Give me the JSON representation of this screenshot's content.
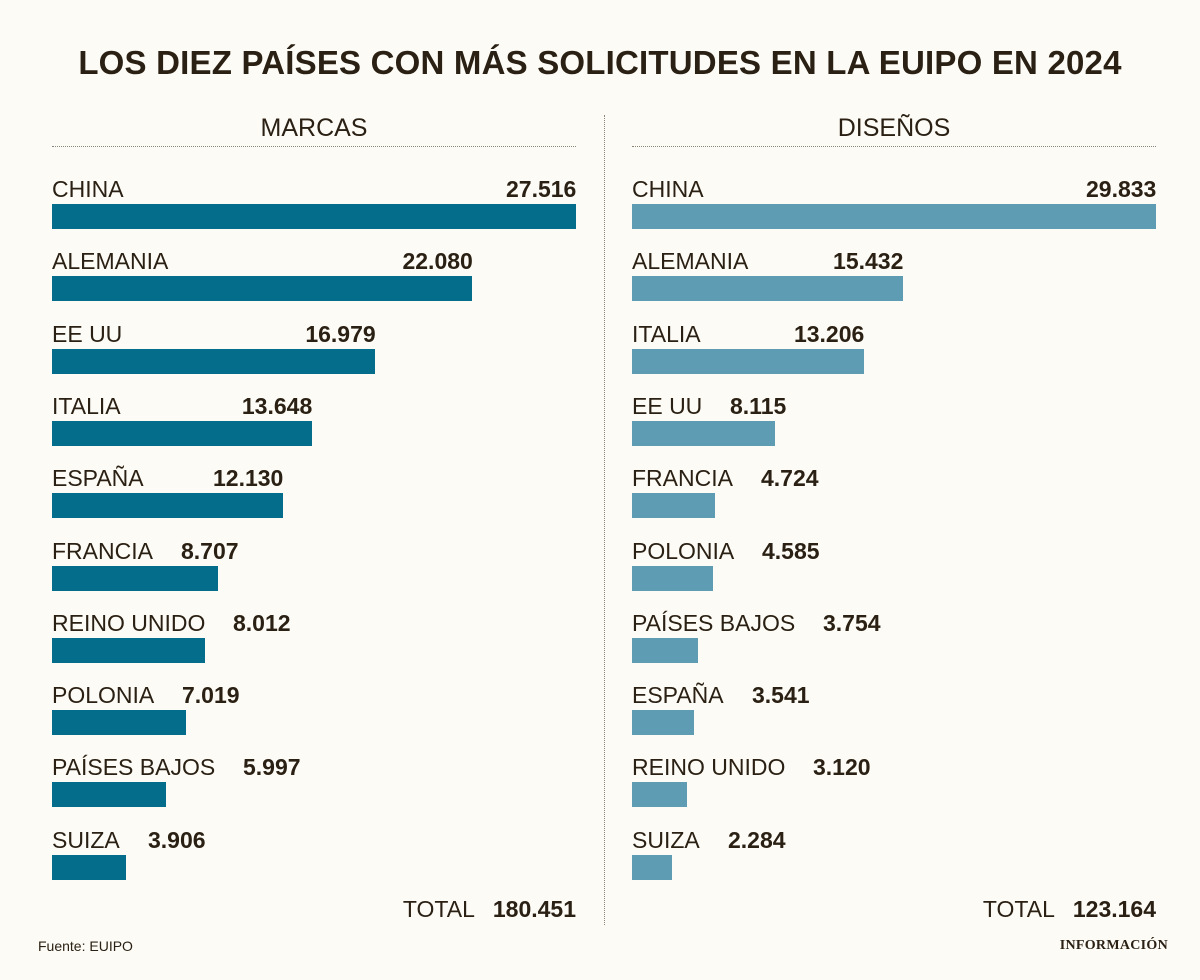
{
  "title": "LOS DIEZ PAÍSES CON MÁS SOLICITUDES EN LA EUIPO EN 2024",
  "colors": {
    "marcas_bar": "#046d8b",
    "disenos_bar": "#5e9cb3",
    "text": "#2a2013"
  },
  "chart_data": [
    {
      "type": "bar",
      "orientation": "horizontal",
      "title": "MARCAS",
      "categories": [
        "CHINA",
        "ALEMANIA",
        "EE UU",
        "ITALIA",
        "ESPAÑA",
        "FRANCIA",
        "REINO UNIDO",
        "POLONIA",
        "PAÍSES BAJOS",
        "SUIZA"
      ],
      "values": [
        27516,
        22080,
        16979,
        13648,
        12130,
        8707,
        8012,
        7019,
        5997,
        3906
      ],
      "labels": [
        "27.516",
        "22.080",
        "16.979",
        "13.648",
        "12.130",
        "8.707",
        "8.012",
        "7.019",
        "5.997",
        "3.906"
      ],
      "total_label": "TOTAL",
      "total": "180.451",
      "xlim": [
        0,
        27516
      ]
    },
    {
      "type": "bar",
      "orientation": "horizontal",
      "title": "DISEÑOS",
      "categories": [
        "CHINA",
        "ALEMANIA",
        "ITALIA",
        "EE UU",
        "FRANCIA",
        "POLONIA",
        "PAÍSES BAJOS",
        "ESPAÑA",
        "REINO UNIDO",
        "SUIZA"
      ],
      "values": [
        29833,
        15432,
        13206,
        8115,
        4724,
        4585,
        3754,
        3541,
        3120,
        2284
      ],
      "labels": [
        "29.833",
        "15.432",
        "13.206",
        "8.115",
        "4.724",
        "4.585",
        "3.754",
        "3.541",
        "3.120",
        "2.284"
      ],
      "total_label": "TOTAL",
      "total": "123.164",
      "xlim": [
        0,
        29833
      ]
    }
  ],
  "footer": {
    "source": "Fuente: EUIPO",
    "brand": "INFORMACIÓN"
  }
}
